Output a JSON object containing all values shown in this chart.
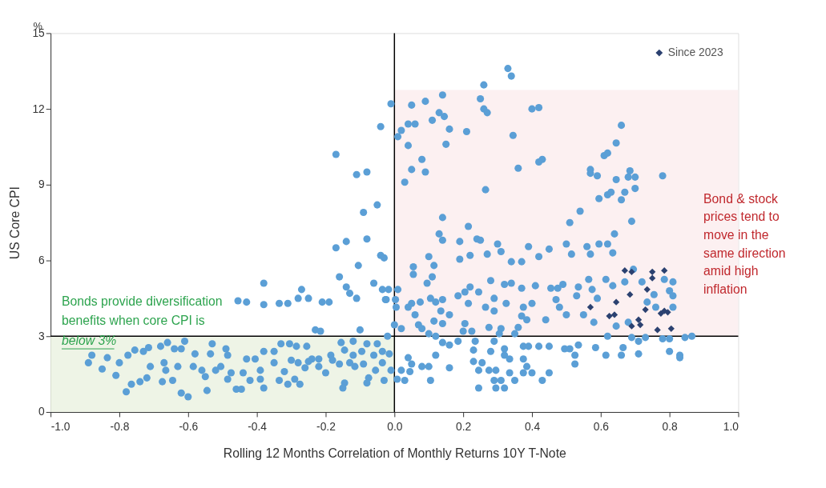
{
  "chart_data": {
    "type": "scatter",
    "xlabel": "Rolling 12 Months Correlation of Monthly Returns 10Y T-Note",
    "ylabel": "US Core CPI",
    "xlim": [
      -1.0,
      1.0
    ],
    "xticks": [
      {
        "value": -1.0,
        "label": "-1.0"
      },
      {
        "value": -0.8,
        "label": "-0.8"
      },
      {
        "value": -0.6,
        "label": "-0.6"
      },
      {
        "value": -0.4,
        "label": "-0.4"
      },
      {
        "value": -0.2,
        "label": "-0.2"
      },
      {
        "value": 0.0,
        "label": "0.0"
      },
      {
        "value": 0.2,
        "label": "0.2"
      },
      {
        "value": 0.4,
        "label": "0.4"
      },
      {
        "value": 0.6,
        "label": "0.6"
      },
      {
        "value": 0.8,
        "label": "0.8"
      },
      {
        "value": 1.0,
        "label": "1.0"
      }
    ],
    "ylim": [
      0,
      15
    ],
    "yticks": [
      0,
      3,
      6,
      9,
      12,
      15
    ],
    "grid": false,
    "legend": "top right",
    "annotations": [
      "%",
      "Bonds provide diversification\nbenefits when core CPI is\nbelow 3%",
      "Bond & stock\nprices tend to\nmove in the\nsame direction\namid high\ninflation"
    ],
    "ref_lines": [
      {
        "axis": "x",
        "value": 0,
        "color": "#000000"
      },
      {
        "axis": "y",
        "value": 3,
        "color": "#000000"
      }
    ],
    "bands": [
      {
        "axis": "y",
        "from": 0,
        "to": 3,
        "color": "#eef4e6"
      },
      {
        "axis": "y",
        "from": 3,
        "to": 12.75,
        "color": "#fcf0f1"
      }
    ],
    "series": [
      {
        "color": "#5b9fd6",
        "marker": "circle",
        "x": [
          -0.17,
          -0.01,
          -0.04,
          -0.11,
          -0.08,
          -0.05,
          -0.09,
          -0.17,
          -0.14,
          -0.08,
          -0.04,
          -0.03,
          0.01,
          0.02,
          0.33,
          0.34,
          0.26,
          0.05,
          0.09,
          0.14,
          0.25,
          0.26,
          0.27,
          0.13,
          0.11,
          0.145,
          0.04,
          0.06,
          0.16,
          0.21,
          0.04,
          0.15,
          0.345,
          0.4,
          0.42,
          0.08,
          0.05,
          0.09,
          0.03,
          0.265,
          0.43,
          0.42,
          0.36,
          0.66,
          0.645,
          0.62,
          0.61,
          0.57,
          0.57,
          0.59,
          0.685,
          0.68,
          0.7,
          0.7,
          0.645,
          0.78,
          0.595,
          0.62,
          0.63,
          0.67,
          0.66,
          0.54,
          0.51,
          0.69,
          0.14,
          0.215,
          0.13,
          0.14,
          0.64,
          0.19,
          0.24,
          0.25,
          0.3,
          0.31,
          0.27,
          0.39,
          0.45,
          0.5,
          0.56,
          0.595,
          0.62,
          0.635,
          0.57,
          0.515,
          0.42,
          0.37,
          0.34,
          0.1,
          0.19,
          0.22,
          -0.455,
          -0.43,
          -0.38,
          -0.38,
          -0.335,
          -0.31,
          -0.28,
          -0.27,
          -0.25,
          -0.21,
          -0.19,
          -0.16,
          -0.14,
          -0.13,
          -0.11,
          -0.105,
          -0.06,
          -0.035,
          -0.026,
          -0.23,
          -0.215,
          -0.1,
          -0.02,
          -0.88,
          -0.89,
          -0.85,
          -0.835,
          -0.81,
          -0.8,
          -0.78,
          -0.765,
          -0.775,
          -0.755,
          -0.73,
          -0.715,
          -0.74,
          -0.72,
          -0.71,
          -0.68,
          -0.66,
          -0.67,
          -0.675,
          -0.665,
          -0.645,
          -0.64,
          -0.62,
          -0.61,
          -0.63,
          -0.62,
          -0.6,
          -0.58,
          -0.585,
          -0.56,
          -0.55,
          -0.545,
          -0.53,
          -0.535,
          -0.52,
          -0.505,
          -0.49,
          -0.485,
          -0.475,
          -0.485,
          -0.46,
          -0.445,
          -0.44,
          -0.43,
          -0.42,
          -0.405,
          -0.39,
          -0.38,
          -0.38,
          -0.39,
          -0.35,
          -0.35,
          -0.33,
          -0.335,
          -0.32,
          -0.31,
          -0.305,
          -0.3,
          -0.285,
          -0.275,
          -0.29,
          -0.255,
          -0.26,
          -0.24,
          -0.22,
          -0.2,
          -0.185,
          -0.155,
          -0.145,
          -0.145,
          -0.15,
          -0.13,
          -0.12,
          -0.12,
          -0.115,
          -0.095,
          -0.09,
          -0.08,
          -0.075,
          -0.08,
          -0.06,
          -0.055,
          -0.05,
          -0.035,
          -0.035,
          -0.03,
          -0.015,
          -0.01,
          -0.25,
          -0.22,
          -0.18,
          -0.28,
          -0.16,
          0.0,
          0.02,
          0.055,
          0.055,
          0.01,
          -0.017,
          -0.024,
          0.005,
          0.003,
          0.04,
          0.05,
          0.06,
          0.075,
          0.095,
          0.105,
          0.11,
          0.115,
          0.12,
          0.14,
          0.135,
          0.16,
          0.14,
          0.07,
          0.08,
          0.1,
          0.115,
          0.12,
          0.14,
          0.16,
          0.185,
          0.185,
          0.205,
          0.215,
          0.22,
          0.205,
          0.2,
          0.225,
          0.235,
          0.23,
          0.245,
          0.265,
          0.28,
          0.29,
          0.29,
          0.275,
          0.29,
          0.28,
          0.32,
          0.32,
          0.34,
          0.325,
          0.31,
          0.305,
          0.35,
          0.36,
          0.37,
          0.37,
          0.385,
          0.375,
          0.39,
          0.375,
          0.4,
          0.41,
          0.42,
          0.45,
          0.44,
          0.455,
          0.475,
          0.49,
          0.47,
          0.48,
          0.5,
          0.495,
          0.51,
          0.53,
          0.535,
          0.55,
          0.525,
          0.525,
          0.535,
          0.565,
          0.575,
          0.59,
          0.58,
          0.585,
          0.615,
          0.615,
          0.635,
          0.645,
          0.66,
          0.665,
          0.67,
          0.695,
          0.72,
          0.71,
          0.71,
          0.735,
          0.755,
          0.76,
          0.785,
          0.8,
          0.81,
          0.81,
          0.81,
          0.78,
          0.8,
          0.8,
          0.83,
          0.83,
          0.845,
          0.865,
          0.69,
          0.73,
          0.62,
          0.68,
          0.04,
          0.05,
          0.08,
          0.1,
          0.105,
          0.03,
          0.008,
          0.02,
          0.045,
          0.12,
          0.16,
          0.23,
          0.245,
          0.245,
          0.255,
          0.275,
          0.295,
          0.29,
          0.31,
          0.295,
          0.32,
          0.32,
          0.335,
          0.335,
          0.35,
          0.375,
          0.385,
          0.375,
          0.4,
          0.43,
          0.45
        ],
        "values": [
          10.2,
          12.2,
          11.3,
          9.4,
          9.5,
          8.2,
          7.9,
          6.5,
          6.75,
          6.85,
          6.2,
          6.1,
          10.9,
          11.15,
          13.6,
          13.3,
          12.95,
          12.15,
          12.3,
          12.55,
          12.4,
          12.0,
          11.85,
          11.85,
          11.55,
          11.7,
          11.4,
          11.4,
          11.2,
          11.1,
          10.55,
          10.6,
          10.95,
          12.0,
          12.05,
          10.0,
          9.6,
          9.5,
          9.1,
          8.8,
          10.0,
          9.9,
          9.65,
          11.35,
          10.65,
          10.25,
          10.15,
          9.6,
          9.45,
          9.35,
          9.55,
          9.3,
          9.3,
          8.85,
          9.2,
          9.35,
          8.45,
          8.6,
          8.7,
          8.7,
          8.4,
          7.95,
          7.5,
          7.55,
          7.7,
          7.35,
          7.05,
          6.8,
          7.05,
          6.75,
          6.85,
          6.8,
          6.65,
          6.35,
          6.25,
          6.55,
          6.45,
          6.65,
          6.55,
          6.65,
          6.65,
          6.3,
          6.25,
          6.25,
          6.15,
          5.95,
          5.95,
          6.15,
          6.05,
          6.2,
          4.4,
          4.35,
          5.1,
          4.25,
          4.3,
          4.3,
          4.5,
          4.85,
          4.5,
          4.35,
          4.35,
          5.35,
          4.95,
          4.7,
          4.5,
          5.8,
          5.1,
          4.85,
          4.45,
          3.25,
          3.2,
          3.25,
          3.0,
          2.25,
          1.95,
          1.7,
          2.15,
          1.45,
          1.95,
          0.8,
          1.1,
          2.25,
          2.45,
          2.4,
          2.55,
          1.2,
          1.35,
          1.8,
          2.6,
          2.75,
          1.95,
          1.2,
          1.65,
          1.25,
          2.5,
          2.5,
          2.8,
          1.8,
          0.75,
          0.6,
          2.3,
          1.8,
          1.65,
          1.4,
          0.85,
          2.7,
          2.3,
          1.65,
          1.8,
          2.5,
          2.25,
          1.55,
          1.3,
          0.9,
          0.9,
          1.55,
          2.1,
          1.25,
          2.1,
          1.3,
          0.95,
          2.4,
          1.65,
          2.4,
          1.95,
          2.7,
          1.25,
          1.6,
          1.1,
          2.7,
          2.05,
          2.6,
          1.1,
          1.3,
          2.6,
          1.75,
          2.1,
          1.8,
          1.55,
          2.25,
          2.75,
          2.45,
          1.15,
          0.95,
          1.95,
          2.8,
          2.25,
          1.8,
          2.4,
          1.9,
          2.7,
          1.35,
          1.15,
          2.25,
          1.65,
          2.7,
          2.4,
          1.95,
          1.25,
          2.3,
          1.65,
          2.0,
          2.1,
          2.05,
          1.95,
          1.9,
          3.45,
          3.3,
          5.75,
          5.45,
          4.85,
          4.85,
          4.45,
          4.15,
          4.45,
          4.15,
          4.3,
          3.85,
          4.35,
          5.1,
          4.5,
          5.35,
          5.8,
          4.35,
          4.45,
          4.0,
          3.85,
          3.5,
          3.45,
          3.3,
          3.1,
          3.6,
          3.0,
          2.75,
          2.65,
          2.8,
          4.6,
          4.75,
          4.3,
          4.95,
          3.5,
          3.2,
          3.2,
          2.8,
          2.45,
          4.75,
          4.15,
          5.2,
          4.0,
          4.5,
          3.35,
          2.8,
          2.4,
          2.5,
          5.05,
          5.1,
          4.3,
          3.3,
          3.1,
          3.1,
          3.35,
          4.9,
          3.8,
          3.65,
          2.6,
          2.6,
          4.15,
          4.3,
          5.0,
          2.6,
          2.6,
          3.65,
          4.9,
          4.9,
          5.05,
          4.45,
          4.15,
          3.85,
          2.5,
          2.5,
          4.6,
          4.95,
          3.85,
          2.25,
          1.9,
          2.65,
          5.25,
          4.85,
          4.5,
          3.55,
          2.55,
          5.25,
          2.25,
          5.0,
          3.4,
          2.25,
          2.55,
          5.15,
          5.65,
          5.15,
          2.3,
          2.8,
          4.35,
          4.65,
          4.15,
          5.25,
          4.8,
          4.6,
          5.15,
          4.15,
          2.9,
          2.9,
          2.4,
          2.25,
          2.15,
          2.95,
          3.0,
          2.95,
          2.95,
          3.0,
          3.55,
          2.15,
          1.9,
          1.8,
          1.8,
          1.25,
          1.25,
          1.3,
          1.65,
          1.6,
          2.25,
          1.75,
          2.0,
          1.65,
          0.95,
          1.95,
          1.65,
          1.65,
          1.25,
          1.25,
          0.95,
          0.95,
          2.25,
          2.1,
          1.55,
          1.25,
          2.1,
          1.8,
          1.55,
          1.55,
          1.25,
          1.55
        ]
      },
      {
        "name": "Since 2023",
        "color": "#2b4170",
        "marker": "diamond",
        "x": [
          0.67,
          0.69,
          0.75,
          0.785,
          0.75,
          0.735,
          0.685,
          0.645,
          0.57,
          0.73,
          0.625,
          0.64,
          0.775,
          0.795,
          0.71,
          0.715,
          0.69,
          0.765,
          0.805,
          0.785
        ],
        "values": [
          5.6,
          5.55,
          5.55,
          5.6,
          5.3,
          4.85,
          4.65,
          4.35,
          4.15,
          4.05,
          3.8,
          3.85,
          3.9,
          3.95,
          3.65,
          3.45,
          3.4,
          3.25,
          3.3,
          4.0
        ]
      }
    ]
  }
}
